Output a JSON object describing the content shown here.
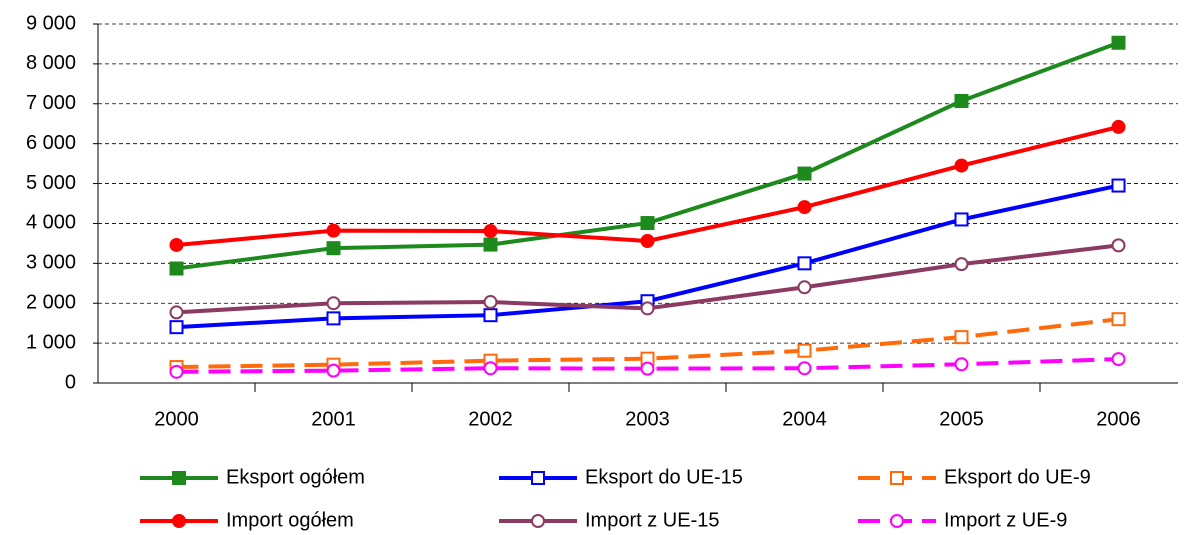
{
  "chart_data": {
    "type": "line",
    "categories": [
      "2000",
      "2001",
      "2002",
      "2003",
      "2004",
      "2005",
      "2006"
    ],
    "ylim": [
      0,
      9000
    ],
    "yticks": [
      {
        "value": 0,
        "label": "0"
      },
      {
        "value": 1000,
        "label": "1 000"
      },
      {
        "value": 2000,
        "label": "2 000"
      },
      {
        "value": 3000,
        "label": "3 000"
      },
      {
        "value": 4000,
        "label": "4 000"
      },
      {
        "value": 5000,
        "label": "5 000"
      },
      {
        "value": 6000,
        "label": "6 000"
      },
      {
        "value": 7000,
        "label": "7 000"
      },
      {
        "value": 8000,
        "label": "8 000"
      },
      {
        "value": 9000,
        "label": "9 000"
      }
    ],
    "grid": true,
    "series": [
      {
        "name": "Eksport ogółem",
        "color": "#1e8a1e",
        "marker": "square",
        "filled": true,
        "dashed": false,
        "values": [
          2870,
          3380,
          3470,
          4010,
          5250,
          7070,
          8530
        ]
      },
      {
        "name": "Eksport do UE-15",
        "color": "#0000ff",
        "marker": "square",
        "filled": false,
        "dashed": false,
        "values": [
          1400,
          1620,
          1700,
          2050,
          3000,
          4100,
          4950
        ]
      },
      {
        "name": "Eksport do UE-9",
        "color": "#ff6a0a",
        "marker": "square",
        "filled": false,
        "dashed": true,
        "values": [
          400,
          460,
          560,
          610,
          810,
          1150,
          1600
        ]
      },
      {
        "name": "Import ogółem",
        "color": "#ff0000",
        "marker": "circle",
        "filled": true,
        "dashed": false,
        "values": [
          3460,
          3820,
          3810,
          3560,
          4410,
          5450,
          6420
        ]
      },
      {
        "name": "Import z UE-15",
        "color": "#8b3a62",
        "marker": "circle",
        "filled": false,
        "dashed": false,
        "values": [
          1770,
          2000,
          2030,
          1870,
          2400,
          2980,
          3450
        ]
      },
      {
        "name": "Import z UE-9",
        "color": "#ff00ff",
        "marker": "circle",
        "filled": false,
        "dashed": true,
        "values": [
          280,
          310,
          370,
          360,
          370,
          470,
          600
        ]
      }
    ]
  }
}
